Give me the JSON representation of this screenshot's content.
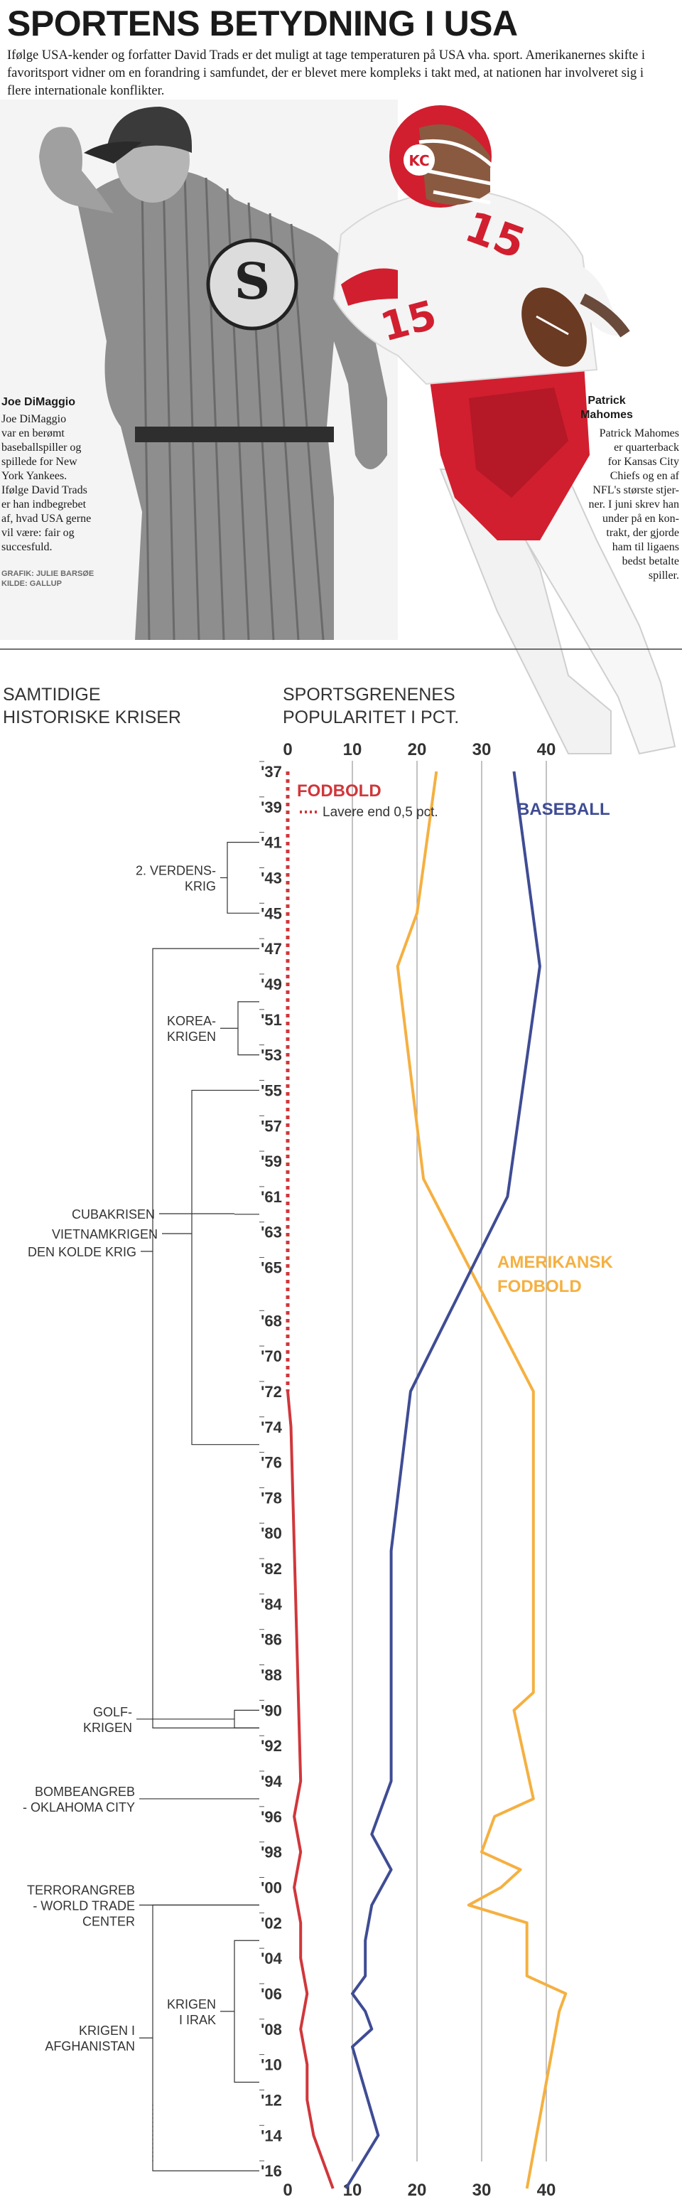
{
  "header": {
    "title": "SPORTENS BETYDNING I USA",
    "intro": "Ifølge USA-kender og forfatter David Trads er det muligt at tage temperaturen på USA vha. sport. Amerikanernes skifte i favoritsport vidner om en forandring i samfundet, der er blevet mere kompleks i takt med, at nationen har involveret sig i flere internationale konflikter."
  },
  "photos": {
    "left": {
      "name": "Joe DiMaggio",
      "caption_lines": [
        "Joe DiMaggio",
        "var en berømt",
        "baseballspiller og",
        "spillede for New",
        "York Yankees.",
        "Ifølge David Trads",
        "er han indbegrebet",
        "af, hvad USA gerne",
        "vil være: fair og",
        "succesfuld."
      ]
    },
    "right": {
      "name_lines": [
        "Patrick",
        "Mahomes"
      ],
      "caption_lines": [
        "Patrick Mahomes",
        "er quarterback",
        "for Kansas City",
        "Chiefs og en af",
        "NFL's største stjer-",
        "ner. I juni skrev han",
        "under på en kon-",
        "trakt, der gjorde",
        "ham til ligaens",
        "bedst betalte",
        "spiller."
      ]
    },
    "credits": [
      "GRAFIK: JULIE BARSØE",
      "KILDE: GALLUP"
    ]
  },
  "crises_heading": [
    "SAMTIDIGE",
    "HISTORISKE KRISER"
  ],
  "chart_heading": [
    "SPORTSGRENENES",
    "POPULARITET I PCT."
  ],
  "crises": [
    {
      "label": [
        "2. VERDENS-",
        "KRIG"
      ],
      "from": 1941,
      "to": 1945
    },
    {
      "label": [
        "KOREA-",
        "KRIGEN"
      ],
      "from": 1950,
      "to": 1953
    },
    {
      "label": [
        "CUBAKRISEN"
      ],
      "from": 1962,
      "to": 1962
    },
    {
      "label": [
        "VIETNAMKRIGEN"
      ],
      "from": 1955,
      "to": 1975
    },
    {
      "label": [
        "DEN KOLDE KRIG"
      ],
      "from": 1947,
      "to": 1991
    },
    {
      "label": [
        "GOLF-",
        "KRIGEN"
      ],
      "from": 1990,
      "to": 1991
    },
    {
      "label": [
        "BOMBEANGREB",
        "- OKLAHOMA CITY"
      ],
      "from": 1995,
      "to": 1995
    },
    {
      "label": [
        "TERRORANGREB",
        "- WORLD TRADE",
        "CENTER"
      ],
      "from": 2001,
      "to": 2001
    },
    {
      "label": [
        "KRIGEN",
        "I IRAK"
      ],
      "from": 2003,
      "to": 2011
    },
    {
      "label": [
        "KRIGEN I",
        "AFGHANISTAN"
      ],
      "from": 2001,
      "to": 2016
    }
  ],
  "chart_data": {
    "type": "line",
    "orientation": "vertical-time",
    "title": "SPORTSGRENENES POPULARITET I PCT.",
    "x_ticks": [
      0,
      10,
      20,
      30,
      40
    ],
    "xlim": [
      0,
      42
    ],
    "year_range": [
      1937,
      2017
    ],
    "year_labels": [
      "'37",
      "'39",
      "'41",
      "'43",
      "'45",
      "'47",
      "'49",
      "'51",
      "'53",
      "'55",
      "'57",
      "'59",
      "'61",
      "'63",
      "'65",
      "'68",
      "'70",
      "'72",
      "'74",
      "'76",
      "'78",
      "'80",
      "'82",
      "'84",
      "'86",
      "'88",
      "'90",
      "'92",
      "'94",
      "'96",
      "'98",
      "'00",
      "'02",
      "'04",
      "'06",
      "'08",
      "'10",
      "'12",
      "'14",
      "'16"
    ],
    "fodbold_note": "Lavere end 0,5 pct.",
    "series": [
      {
        "name": "FODBOLD",
        "color": "#d0373b",
        "dotted_until": 1972,
        "points": [
          [
            1937,
            0
          ],
          [
            1972,
            0
          ],
          [
            1974,
            0.5
          ],
          [
            1994,
            2
          ],
          [
            1996,
            1
          ],
          [
            1998,
            2
          ],
          [
            2000,
            1
          ],
          [
            2002,
            2
          ],
          [
            2004,
            2
          ],
          [
            2006,
            3
          ],
          [
            2008,
            2
          ],
          [
            2010,
            3
          ],
          [
            2012,
            3
          ],
          [
            2014,
            4
          ],
          [
            2016,
            6
          ],
          [
            2017,
            7
          ]
        ]
      },
      {
        "name": "AMERIKANSK FODBOLD",
        "color": "#f5b041",
        "points": [
          [
            1937,
            23
          ],
          [
            1945,
            20
          ],
          [
            1948,
            17
          ],
          [
            1960,
            21
          ],
          [
            1972,
            38
          ],
          [
            1989,
            38
          ],
          [
            1990,
            35
          ],
          [
            1995,
            38
          ],
          [
            1996,
            32
          ],
          [
            1998,
            30
          ],
          [
            1999,
            36
          ],
          [
            2000,
            33
          ],
          [
            2001,
            28
          ],
          [
            2002,
            37
          ],
          [
            2005,
            37
          ],
          [
            2006,
            43
          ],
          [
            2007,
            42
          ],
          [
            2017,
            37
          ]
        ]
      },
      {
        "name": "BASEBALL",
        "color": "#3f4c94",
        "points": [
          [
            1937,
            35
          ],
          [
            1948,
            39
          ],
          [
            1961,
            34
          ],
          [
            1972,
            19
          ],
          [
            1981,
            16
          ],
          [
            1994,
            16
          ],
          [
            1997,
            13
          ],
          [
            1999,
            16
          ],
          [
            2001,
            13
          ],
          [
            2003,
            12
          ],
          [
            2005,
            12
          ],
          [
            2006,
            10
          ],
          [
            2007,
            12
          ],
          [
            2008,
            13
          ],
          [
            2009,
            10
          ],
          [
            2014,
            14
          ],
          [
            2017,
            9
          ]
        ]
      }
    ]
  },
  "colors": {
    "fodbold": "#d0373b",
    "amerikansk_fodbold": "#f5b041",
    "baseball": "#3f4c94",
    "gridline": "#9a9a9a",
    "text": "#1a1a1a"
  }
}
